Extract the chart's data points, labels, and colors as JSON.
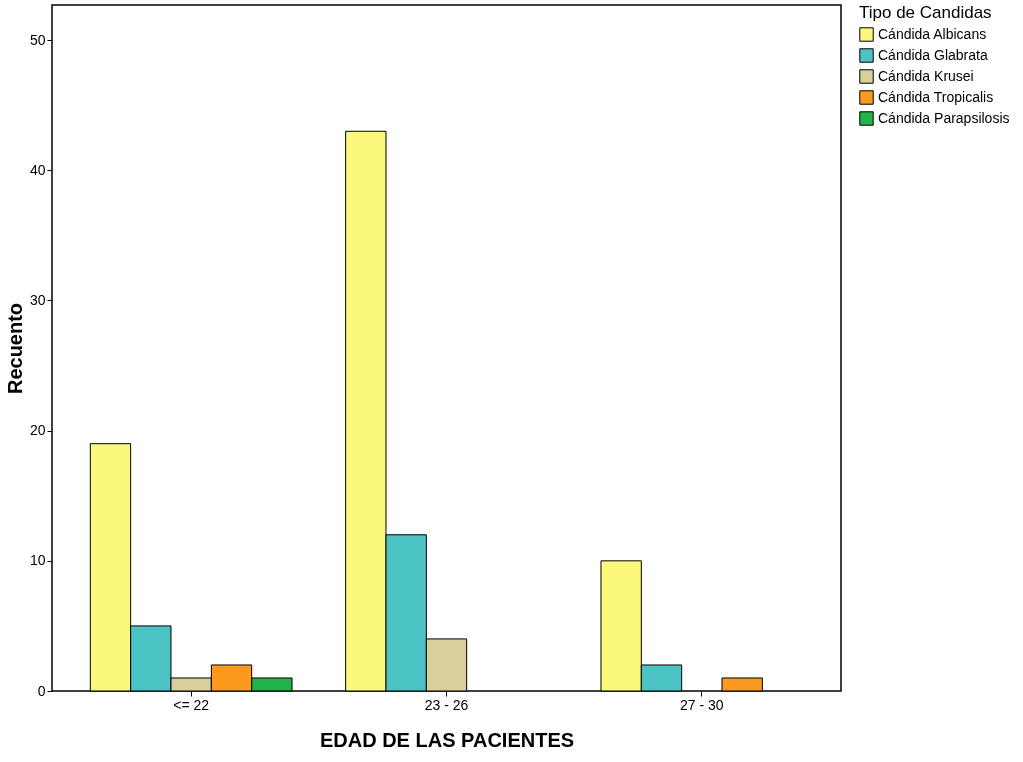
{
  "chart_data": {
    "type": "bar",
    "xlabel": "EDAD DE LAS PACIENTES",
    "ylabel": "Recuento",
    "legend_title": "Tipo de Candidas",
    "categories": [
      "<= 22",
      "23 - 26",
      "27 - 30"
    ],
    "series": [
      {
        "name": "Cándida Albicans",
        "color": "#fbf87b",
        "values": [
          19,
          43,
          10
        ]
      },
      {
        "name": "Cándida Glabrata",
        "color": "#4cc3c5",
        "values": [
          5,
          12,
          2
        ]
      },
      {
        "name": "Cándida Krusei",
        "color": "#d8d09c",
        "values": [
          1,
          4,
          null
        ]
      },
      {
        "name": "Cándida Tropicalis",
        "color": "#fb9a1e",
        "values": [
          2,
          null,
          1
        ]
      },
      {
        "name": "Cándida Parapsilosis",
        "color": "#21b24a",
        "values": [
          1,
          null,
          null
        ]
      }
    ],
    "ylim": [
      0,
      52.7
    ],
    "yticks": [
      0,
      10,
      20,
      30,
      40,
      50
    ],
    "grid": false,
    "legend": "top right"
  }
}
